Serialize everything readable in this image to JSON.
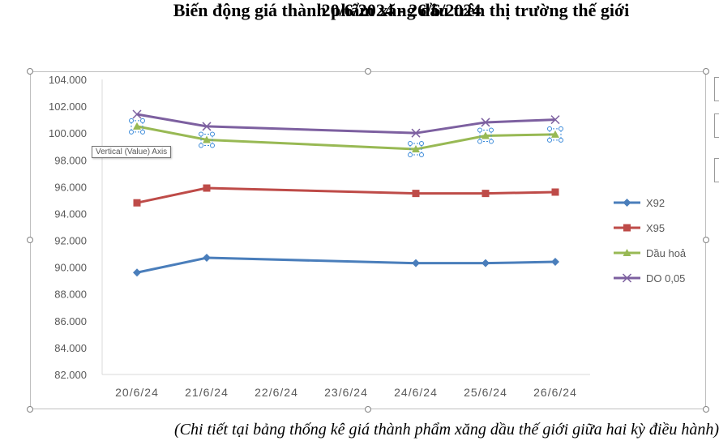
{
  "title_line1": "Biến động giá thành phẩm xăng dầu trên thị trường thế giới",
  "title_line2": "20/6/2024 - 26/6/2024",
  "tooltip": "Vertical (Value) Axis",
  "caption": "(Chi tiết tại bảng thống kê giá thành phẩm xăng dầu thế giới giữa hai kỳ điều hành)",
  "chart_data": {
    "type": "line",
    "categories": [
      "20/6/24",
      "21/6/24",
      "22/6/24",
      "23/6/24",
      "24/6/24",
      "25/6/24",
      "26/6/24"
    ],
    "ylim": [
      82,
      104
    ],
    "yticks": [
      "82.000",
      "84.000",
      "86.000",
      "88.000",
      "90.000",
      "92.000",
      "94.000",
      "96.000",
      "98.000",
      "100.000",
      "102.000",
      "104.000"
    ],
    "grid": false,
    "legend_position": "right",
    "series": [
      {
        "name": "X92",
        "color": "#4a7ebb",
        "marker": "diamond",
        "values": [
          89.6,
          90.7,
          null,
          null,
          90.3,
          90.3,
          90.4
        ]
      },
      {
        "name": "X95",
        "color": "#be4b48",
        "marker": "square",
        "values": [
          94.8,
          95.9,
          null,
          null,
          95.5,
          95.5,
          95.6
        ]
      },
      {
        "name": "Dầu hoả",
        "color": "#98b954",
        "marker": "triangle",
        "values": [
          100.5,
          99.5,
          null,
          null,
          98.8,
          99.8,
          99.9
        ]
      },
      {
        "name": "DO 0,05",
        "color": "#7d60a0",
        "marker": "x",
        "values": [
          101.4,
          100.5,
          null,
          null,
          100.0,
          100.8,
          101.0
        ]
      }
    ]
  }
}
